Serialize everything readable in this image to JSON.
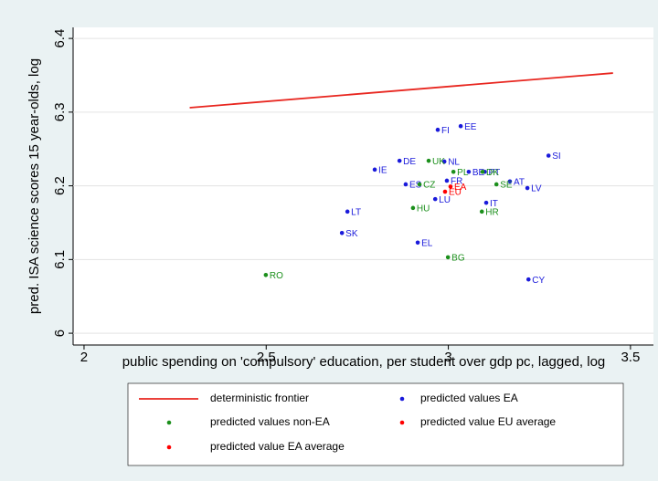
{
  "chart_data": {
    "type": "scatter",
    "xlabel": "public spending on 'compulsory' education, per student over gdp pc, lagged, log",
    "ylabel": "pred. ISA science scores 15 year-olds, log",
    "xlim": [
      1.97,
      3.563
    ],
    "ylim": [
      5.984,
      6.415
    ],
    "xticks": [
      2,
      2.5,
      3,
      3.5
    ],
    "yticks": [
      6,
      6.1,
      6.2,
      6.3,
      6.4
    ],
    "grid": true,
    "frontier": {
      "name": "deterministic frontier",
      "color": "#e8261f",
      "x": [
        2.29,
        3.452
      ],
      "y": [
        6.306,
        6.353
      ]
    },
    "series": [
      {
        "name": "predicted values EA",
        "color": "#1a1adb",
        "labels": [
          "FI",
          "EE",
          "DE",
          "NL",
          "SI",
          "IE",
          "BE",
          "PT",
          "ES",
          "FR",
          "AT",
          "LV",
          "LU",
          "IT",
          "LT",
          "SK",
          "EL",
          "CY"
        ],
        "x": [
          2.971,
          3.034,
          2.866,
          2.989,
          3.275,
          2.798,
          3.056,
          3.1,
          2.883,
          2.996,
          3.169,
          3.217,
          2.964,
          3.104,
          2.723,
          2.708,
          2.916,
          3.22
        ],
        "y": [
          6.276,
          6.281,
          6.234,
          6.233,
          6.241,
          6.222,
          6.219,
          6.219,
          6.202,
          6.207,
          6.206,
          6.197,
          6.182,
          6.177,
          6.165,
          6.136,
          6.123,
          6.073
        ]
      },
      {
        "name": "predicted values non-EA",
        "color": "#1b8f1b",
        "labels": [
          "UK",
          "PL",
          "DK",
          "CZ",
          "SE",
          "HU",
          "HR",
          "BG",
          "RO"
        ],
        "x": [
          2.946,
          3.014,
          3.094,
          2.921,
          3.132,
          2.903,
          3.092,
          2.999,
          2.499
        ],
        "y": [
          6.234,
          6.219,
          6.219,
          6.202,
          6.202,
          6.17,
          6.165,
          6.103,
          6.079
        ]
      },
      {
        "name": "predicted value EU average",
        "color": "#ff0000",
        "labels": [
          "EU"
        ],
        "x": [
          2.991
        ],
        "y": [
          6.192
        ]
      },
      {
        "name": "predicted value EA average",
        "color": "#ff0000",
        "labels": [
          "EA"
        ],
        "x": [
          3.006
        ],
        "y": [
          6.199
        ]
      }
    ]
  }
}
